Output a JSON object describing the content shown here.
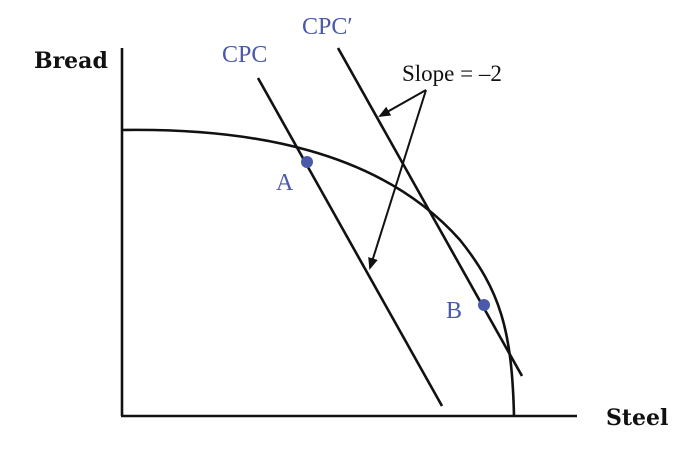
{
  "axes": {
    "y_label": "Bread",
    "x_label": "Steel"
  },
  "lines": {
    "cpc_label": "CPC",
    "cpc_prime_label": "CPC′"
  },
  "points": {
    "a_label": "A",
    "b_label": "B"
  },
  "annotation": {
    "slope_text": "Slope = –2"
  },
  "colors": {
    "accent": "#4a5aa8",
    "ink": "#111111"
  }
}
